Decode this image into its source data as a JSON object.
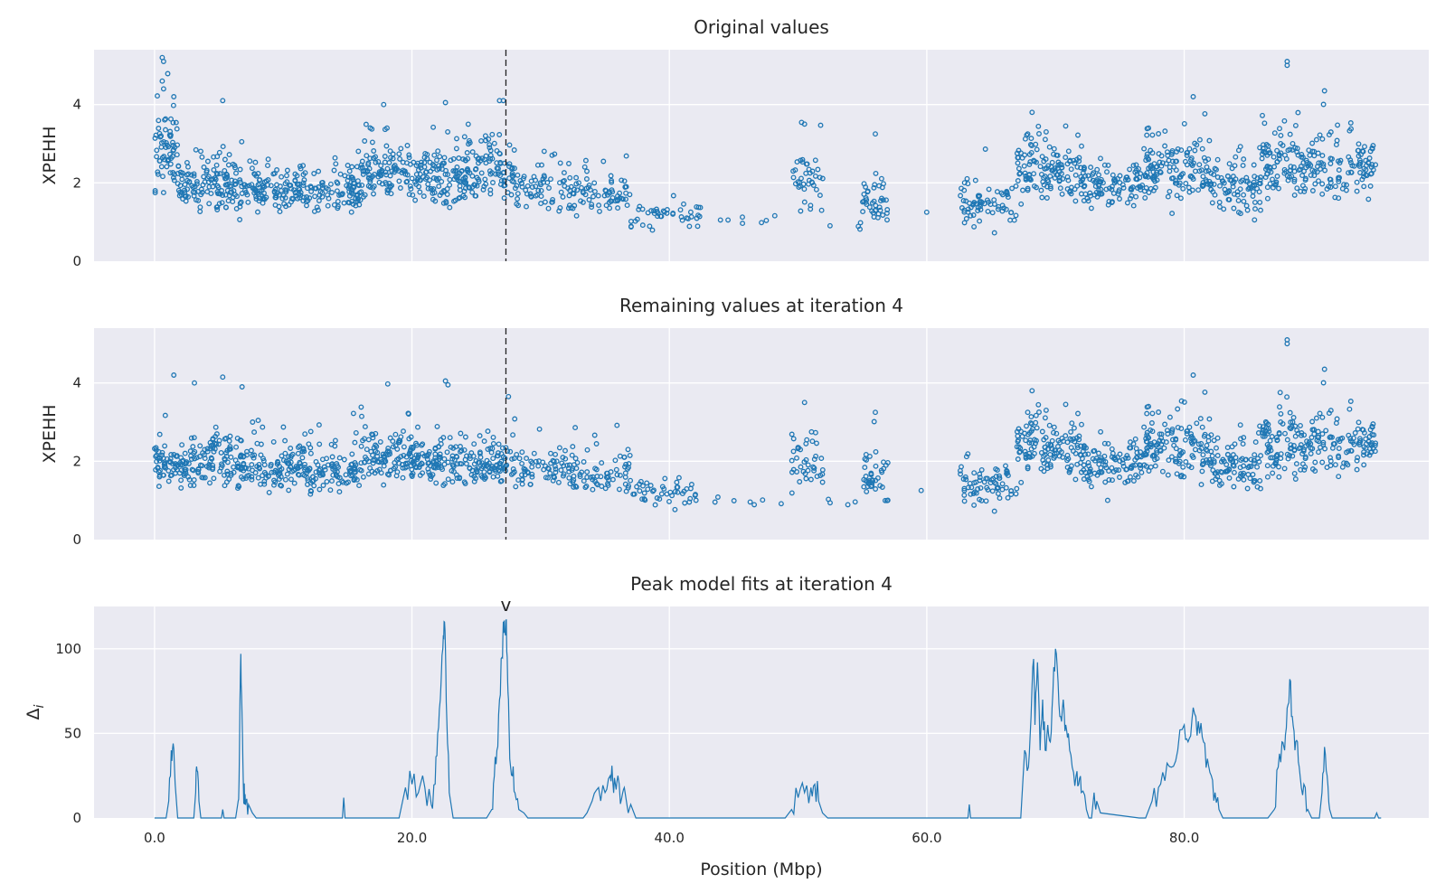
{
  "colors": {
    "series": "#1f77b4",
    "panel_bg": "#eaeaf2",
    "grid": "#ffffff",
    "marker_line": "#222222"
  },
  "peak_marker": {
    "position_mbp": 27.3,
    "glyph": "v"
  },
  "chart_data": [
    {
      "type": "scatter",
      "title": "Original values",
      "ylabel": "XPEHH",
      "xlabel": "",
      "xlim": [
        -4.7,
        99.0
      ],
      "ylim": [
        0,
        5.4
      ],
      "yticks": [
        0,
        2,
        4
      ],
      "ytick_labels": [
        "0",
        "2",
        "4"
      ],
      "grid": true,
      "vline_x": 27.3,
      "clusters": [
        {
          "x": [
            0.0,
            1.8
          ],
          "center": 2.8,
          "spread": 0.7,
          "n": 60
        },
        {
          "x": [
            1.8,
            3.5
          ],
          "center": 1.9,
          "spread": 0.5,
          "n": 45
        },
        {
          "x": [
            3.5,
            5.0
          ],
          "center": 2.1,
          "spread": 0.6,
          "n": 40
        },
        {
          "x": [
            5.0,
            8.0
          ],
          "center": 1.9,
          "spread": 0.5,
          "n": 80
        },
        {
          "x": [
            8.0,
            12.0
          ],
          "center": 1.8,
          "spread": 0.45,
          "n": 100
        },
        {
          "x": [
            12.0,
            16.0
          ],
          "center": 1.7,
          "spread": 0.45,
          "n": 90
        },
        {
          "x": [
            16.0,
            20.0
          ],
          "center": 2.2,
          "spread": 0.6,
          "n": 110
        },
        {
          "x": [
            20.0,
            24.0
          ],
          "center": 2.1,
          "spread": 0.55,
          "n": 110
        },
        {
          "x": [
            24.0,
            28.0
          ],
          "center": 2.3,
          "spread": 0.6,
          "n": 110
        },
        {
          "x": [
            28.0,
            32.0
          ],
          "center": 1.8,
          "spread": 0.45,
          "n": 60
        },
        {
          "x": [
            32.0,
            37.0
          ],
          "center": 1.7,
          "spread": 0.45,
          "n": 80
        },
        {
          "x": [
            37.0,
            42.5
          ],
          "center": 1.2,
          "spread": 0.35,
          "n": 45
        },
        {
          "x": [
            43.0,
            49.0
          ],
          "center": 1.0,
          "spread": 0.15,
          "n": 7
        },
        {
          "x": [
            49.5,
            52.0
          ],
          "center": 2.0,
          "spread": 0.6,
          "n": 40
        },
        {
          "x": [
            52.0,
            55.0
          ],
          "center": 0.95,
          "spread": 0.1,
          "n": 4
        },
        {
          "x": [
            55.0,
            57.0
          ],
          "center": 1.5,
          "spread": 0.5,
          "n": 40
        },
        {
          "x": [
            59.5,
            60.0
          ],
          "center": 1.3,
          "spread": 0.05,
          "n": 1
        },
        {
          "x": [
            62.5,
            67.0
          ],
          "center": 1.5,
          "spread": 0.45,
          "n": 70
        },
        {
          "x": [
            67.0,
            72.0
          ],
          "center": 2.3,
          "spread": 0.6,
          "n": 130
        },
        {
          "x": [
            72.0,
            77.0
          ],
          "center": 1.9,
          "spread": 0.5,
          "n": 110
        },
        {
          "x": [
            77.0,
            82.0
          ],
          "center": 2.3,
          "spread": 0.6,
          "n": 130
        },
        {
          "x": [
            82.0,
            86.0
          ],
          "center": 1.8,
          "spread": 0.5,
          "n": 90
        },
        {
          "x": [
            86.0,
            89.0
          ],
          "center": 2.5,
          "spread": 0.7,
          "n": 80
        },
        {
          "x": [
            89.0,
            95.0
          ],
          "center": 2.4,
          "spread": 0.6,
          "n": 130
        }
      ],
      "highlights": [
        {
          "x": 0.6,
          "y": 5.2
        },
        {
          "x": 0.7,
          "y": 5.1
        },
        {
          "x": 0.6,
          "y": 4.6
        },
        {
          "x": 0.7,
          "y": 4.4
        },
        {
          "x": 1.5,
          "y": 4.2
        },
        {
          "x": 5.3,
          "y": 4.1
        },
        {
          "x": 17.8,
          "y": 4.0
        },
        {
          "x": 22.6,
          "y": 4.05
        },
        {
          "x": 26.8,
          "y": 4.1
        },
        {
          "x": 27.1,
          "y": 4.1
        },
        {
          "x": 50.5,
          "y": 3.5
        },
        {
          "x": 56.0,
          "y": 3.25
        },
        {
          "x": 80.7,
          "y": 4.2
        },
        {
          "x": 88.0,
          "y": 5.1
        },
        {
          "x": 88.0,
          "y": 5.0
        },
        {
          "x": 90.9,
          "y": 4.35
        },
        {
          "x": 0.05,
          "y": 1.8
        },
        {
          "x": 0.05,
          "y": 1.75
        }
      ]
    },
    {
      "type": "scatter",
      "title": "Remaining values at iteration 4",
      "ylabel": "XPEHH",
      "xlabel": "",
      "xlim": [
        -4.7,
        99.0
      ],
      "ylim": [
        0,
        5.4
      ],
      "yticks": [
        0,
        2,
        4
      ],
      "ytick_labels": [
        "0",
        "2",
        "4"
      ],
      "grid": true,
      "vline_x": 27.3,
      "clusters": [
        {
          "x": [
            0.0,
            1.8
          ],
          "center": 1.9,
          "spread": 0.5,
          "n": 55
        },
        {
          "x": [
            1.8,
            3.5
          ],
          "center": 1.9,
          "spread": 0.5,
          "n": 45
        },
        {
          "x": [
            3.5,
            5.0
          ],
          "center": 2.1,
          "spread": 0.6,
          "n": 40
        },
        {
          "x": [
            5.0,
            8.0
          ],
          "center": 1.9,
          "spread": 0.5,
          "n": 80
        },
        {
          "x": [
            8.0,
            12.0
          ],
          "center": 1.8,
          "spread": 0.45,
          "n": 100
        },
        {
          "x": [
            12.0,
            16.0
          ],
          "center": 1.7,
          "spread": 0.45,
          "n": 90
        },
        {
          "x": [
            16.0,
            20.0
          ],
          "center": 2.1,
          "spread": 0.55,
          "n": 110
        },
        {
          "x": [
            20.0,
            24.0
          ],
          "center": 2.0,
          "spread": 0.5,
          "n": 105
        },
        {
          "x": [
            24.0,
            28.0
          ],
          "center": 1.9,
          "spread": 0.45,
          "n": 100
        },
        {
          "x": [
            28.0,
            32.0
          ],
          "center": 1.8,
          "spread": 0.45,
          "n": 60
        },
        {
          "x": [
            32.0,
            37.0
          ],
          "center": 1.7,
          "spread": 0.45,
          "n": 80
        },
        {
          "x": [
            37.0,
            42.5
          ],
          "center": 1.2,
          "spread": 0.35,
          "n": 45
        },
        {
          "x": [
            43.0,
            49.0
          ],
          "center": 1.0,
          "spread": 0.15,
          "n": 7
        },
        {
          "x": [
            49.5,
            52.0
          ],
          "center": 2.0,
          "spread": 0.6,
          "n": 40
        },
        {
          "x": [
            52.0,
            55.0
          ],
          "center": 0.95,
          "spread": 0.1,
          "n": 4
        },
        {
          "x": [
            55.0,
            57.0
          ],
          "center": 1.5,
          "spread": 0.5,
          "n": 40
        },
        {
          "x": [
            59.5,
            60.0
          ],
          "center": 1.3,
          "spread": 0.05,
          "n": 1
        },
        {
          "x": [
            62.5,
            67.0
          ],
          "center": 1.5,
          "spread": 0.45,
          "n": 70
        },
        {
          "x": [
            67.0,
            72.0
          ],
          "center": 2.3,
          "spread": 0.6,
          "n": 130
        },
        {
          "x": [
            72.0,
            77.0
          ],
          "center": 1.9,
          "spread": 0.5,
          "n": 110
        },
        {
          "x": [
            77.0,
            82.0
          ],
          "center": 2.3,
          "spread": 0.6,
          "n": 130
        },
        {
          "x": [
            82.0,
            86.0
          ],
          "center": 1.8,
          "spread": 0.5,
          "n": 90
        },
        {
          "x": [
            86.0,
            89.0
          ],
          "center": 2.5,
          "spread": 0.7,
          "n": 80
        },
        {
          "x": [
            89.0,
            95.0
          ],
          "center": 2.4,
          "spread": 0.6,
          "n": 130
        }
      ],
      "highlights": [
        {
          "x": 1.5,
          "y": 4.2
        },
        {
          "x": 3.1,
          "y": 4.0
        },
        {
          "x": 5.3,
          "y": 4.15
        },
        {
          "x": 6.8,
          "y": 3.9
        },
        {
          "x": 22.6,
          "y": 4.05
        },
        {
          "x": 22.8,
          "y": 3.95
        },
        {
          "x": 27.5,
          "y": 3.65
        },
        {
          "x": 50.5,
          "y": 3.5
        },
        {
          "x": 56.0,
          "y": 3.25
        },
        {
          "x": 80.7,
          "y": 4.2
        },
        {
          "x": 88.0,
          "y": 5.1
        },
        {
          "x": 88.0,
          "y": 5.0
        },
        {
          "x": 90.9,
          "y": 4.35
        }
      ]
    },
    {
      "type": "line",
      "title": "Peak model fits at iteration 4",
      "ylabel": "Δ",
      "ylabel_subscript": "i",
      "xlabel": "Position (Mbp)",
      "xlim": [
        -4.7,
        99.0
      ],
      "ylim": [
        0,
        125
      ],
      "yticks": [
        0,
        50,
        100
      ],
      "ytick_labels": [
        "0",
        "50",
        "100"
      ],
      "xticks": [
        0,
        20,
        40,
        60,
        80
      ],
      "xtick_labels": [
        "0.0",
        "20.0",
        "40.0",
        "60.0",
        "80.0"
      ],
      "grid": true,
      "series": [
        {
          "x": [
            0.0,
            0.9,
            1.1,
            1.3,
            1.45,
            1.6,
            1.8,
            2.2,
            3.05,
            3.2,
            3.3,
            3.45,
            3.6,
            4.0,
            5.2,
            5.3,
            5.4,
            6.3,
            6.5,
            6.6,
            6.7,
            6.8,
            6.9,
            7.0,
            7.1,
            7.3,
            7.6,
            7.9,
            8.1,
            8.3,
            14.6,
            14.7,
            14.8,
            19.0,
            19.5,
            20.0,
            20.5,
            21.0,
            21.5,
            21.8,
            22.0,
            22.2,
            22.4,
            22.5,
            22.6,
            22.7,
            22.9,
            23.2,
            25.8,
            26.2,
            26.4,
            26.6,
            26.8,
            27.0,
            27.1,
            27.2,
            27.3,
            27.4,
            27.5,
            27.6,
            27.8,
            28.0,
            28.3,
            28.7,
            29.0,
            29.5,
            33.3,
            33.6,
            34.0,
            34.5,
            35.0,
            35.4,
            35.6,
            35.8,
            36.0,
            36.3,
            36.5,
            36.8,
            37.0,
            37.4,
            49.0,
            49.5,
            50.0,
            50.5,
            51.0,
            51.3,
            51.6,
            51.9,
            52.3,
            63.2,
            63.3,
            63.4,
            67.3,
            67.6,
            67.9,
            68.1,
            68.3,
            68.4,
            68.6,
            68.8,
            69.0,
            69.2,
            69.4,
            69.6,
            69.8,
            70.0,
            70.2,
            70.4,
            70.6,
            70.8,
            71.0,
            71.3,
            71.6,
            71.8,
            72.0,
            72.4,
            72.6,
            72.8,
            73.0,
            73.2,
            73.5,
            76.5,
            77.0,
            77.5,
            78.0,
            78.5,
            79.0,
            79.5,
            80.0,
            80.3,
            80.6,
            80.9,
            81.2,
            81.5,
            81.8,
            82.1,
            82.4,
            82.7,
            83.0,
            86.5,
            87.0,
            87.3,
            87.6,
            87.8,
            88.0,
            88.2,
            88.4,
            88.6,
            88.8,
            89.0,
            89.3,
            89.6,
            89.9,
            90.2,
            90.5,
            90.7,
            90.9,
            91.1,
            91.3,
            91.5,
            94.8,
            94.95,
            95.1,
            95.3
          ],
          "y": [
            0,
            0,
            10,
            40,
            44,
            20,
            0,
            0,
            0,
            15,
            28,
            10,
            0,
            0,
            0,
            5,
            0,
            0,
            10,
            40,
            97,
            60,
            20,
            8,
            10,
            8,
            3,
            0,
            0,
            0,
            0,
            12,
            0,
            0,
            18,
            20,
            15,
            18,
            8,
            20,
            50,
            70,
            100,
            116,
            100,
            60,
            15,
            0,
            0,
            5,
            25,
            40,
            70,
            95,
            116,
            110,
            117,
            95,
            70,
            35,
            25,
            15,
            5,
            3,
            0,
            0,
            0,
            3,
            10,
            18,
            15,
            25,
            22,
            20,
            25,
            12,
            18,
            3,
            8,
            0,
            0,
            5,
            12,
            15,
            18,
            20,
            10,
            3,
            0,
            0,
            8,
            0,
            0,
            40,
            30,
            60,
            94,
            55,
            92,
            40,
            70,
            40,
            55,
            45,
            75,
            100,
            80,
            60,
            70,
            55,
            50,
            30,
            25,
            20,
            15,
            5,
            0,
            0,
            15,
            10,
            3,
            0,
            0,
            10,
            18,
            22,
            30,
            40,
            55,
            45,
            58,
            60,
            50,
            45,
            35,
            25,
            15,
            5,
            0,
            0,
            5,
            30,
            45,
            40,
            65,
            82,
            60,
            40,
            45,
            25,
            20,
            5,
            0,
            0,
            0,
            15,
            42,
            25,
            5,
            0,
            0,
            3,
            0,
            0
          ]
        }
      ]
    }
  ]
}
